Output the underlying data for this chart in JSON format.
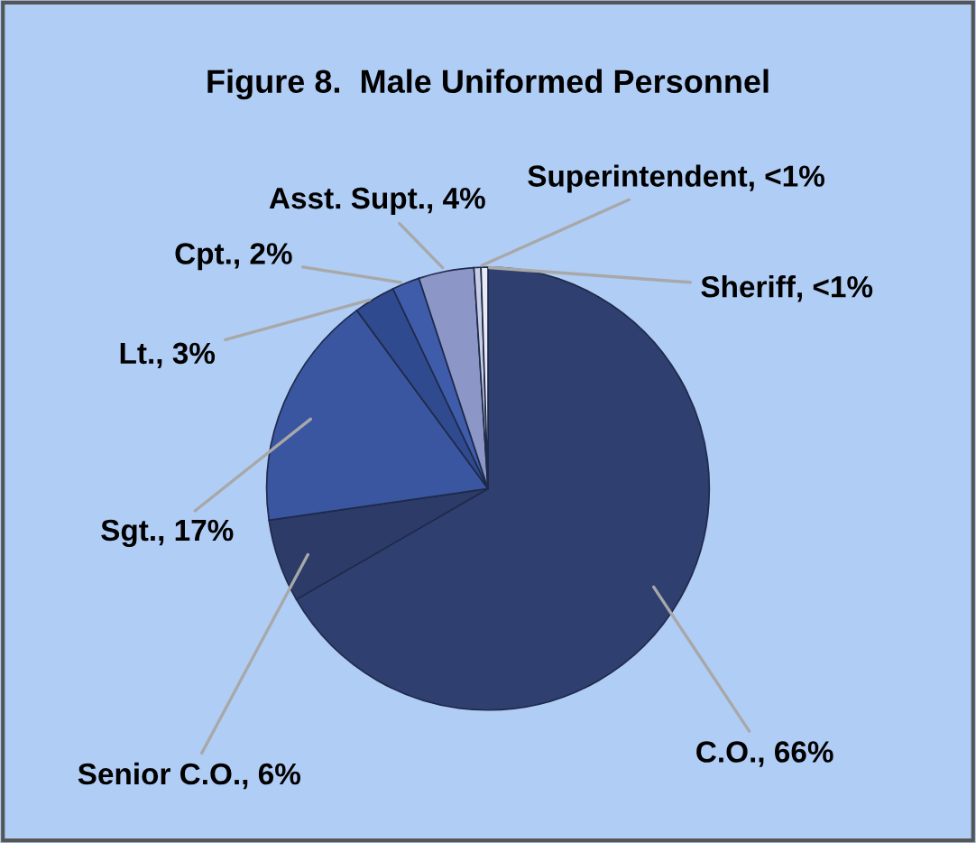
{
  "chart_data": {
    "type": "pie",
    "title": "Figure 8.  Male Uniformed Personnel",
    "categories": [
      "C.O.",
      "Senior C.O.",
      "Sgt.",
      "Lt.",
      "Cpt.",
      "Asst. Supt.",
      "Superintendent",
      "Sheriff"
    ],
    "values": [
      66,
      6,
      17,
      3,
      2,
      4,
      0.5,
      0.5
    ],
    "value_labels": [
      "66%",
      "6%",
      "17%",
      "3%",
      "2%",
      "4%",
      "<1%",
      "<1%"
    ],
    "colors": [
      "#2f3f70",
      "#2c3b68",
      "#3a56a0",
      "#2f4a8e",
      "#3f5cab",
      "#8c97c8",
      "#c9cee6",
      "#e8eaf4"
    ]
  }
}
